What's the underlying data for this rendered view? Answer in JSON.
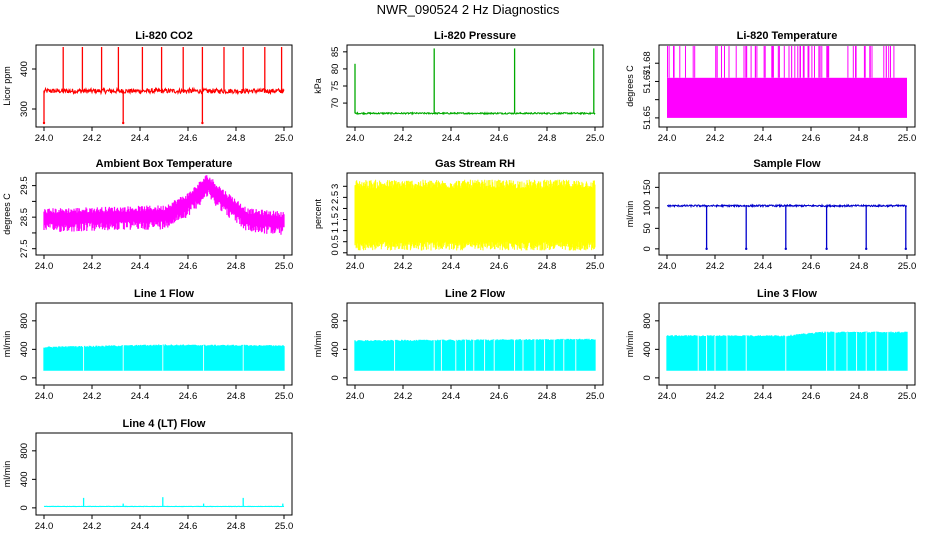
{
  "figure_title": "NWR_090524  2 Hz Diagnostics",
  "chart_data": [
    {
      "type": "line",
      "title": "Li-820 CO2",
      "ylabel": "Licor ppm",
      "color": "#ff0000",
      "xlim": [
        24.0,
        25.0
      ],
      "ylim": [
        255,
        460
      ],
      "yticks": [
        300,
        400
      ],
      "x_ticks": [
        "24.0",
        "24.2",
        "24.4",
        "24.6",
        "24.8",
        "25.0"
      ],
      "series": [
        {
          "baseline": 345,
          "noise": 6,
          "spikes": [
            [
              24.08,
              455
            ],
            [
              24.16,
              455
            ],
            [
              24.24,
              455
            ],
            [
              24.31,
              455
            ],
            [
              24.41,
              455
            ],
            [
              24.49,
              455
            ],
            [
              24.58,
              455
            ],
            [
              24.66,
              455
            ],
            [
              24.75,
              455
            ],
            [
              24.83,
              455
            ],
            [
              24.92,
              455
            ],
            [
              24.99,
              455
            ]
          ],
          "dips": [
            [
              24.0,
              265
            ],
            [
              24.33,
              265
            ],
            [
              24.66,
              265
            ]
          ]
        }
      ]
    },
    {
      "type": "line",
      "title": "Li-820 Pressure",
      "ylabel": "kPa",
      "color": "#00aa00",
      "xlim": [
        24.0,
        25.0
      ],
      "ylim": [
        63,
        87
      ],
      "yticks": [
        70,
        75,
        80,
        85
      ],
      "x_ticks": [
        "24.0",
        "24.2",
        "24.4",
        "24.6",
        "24.8",
        "25.0"
      ],
      "series": [
        {
          "baseline": 67,
          "noise": 0.2,
          "spikes": [
            [
              24.0,
              81.5
            ],
            [
              24.33,
              86
            ],
            [
              24.665,
              86
            ],
            [
              24.995,
              86
            ]
          ],
          "dips": []
        }
      ]
    },
    {
      "type": "area",
      "title": "Li-820 Temperature",
      "ylabel": "degrees C",
      "color": "#ff00ff",
      "xlim": [
        24.0,
        25.0
      ],
      "ylim": [
        51.645,
        51.69
      ],
      "yticks": [
        51.65,
        51.66,
        51.67,
        51.68
      ],
      "ytick_labels": [
        "51.65",
        "",
        "51.67",
        "51.68"
      ],
      "x_ticks": [
        "24.0",
        "24.2",
        "24.4",
        "24.6",
        "24.8",
        "25.0"
      ],
      "series": [
        {
          "low": 51.65,
          "high": 51.672,
          "spike_top": 51.69,
          "spike_count": 70
        }
      ]
    },
    {
      "type": "area",
      "title": "Ambient Box Temperature",
      "ylabel": "degrees C",
      "color": "#ff00ff",
      "xlim": [
        24.0,
        25.0
      ],
      "ylim": [
        27.3,
        29.9
      ],
      "yticks": [
        27.5,
        28.0,
        28.5,
        29.0,
        29.5
      ],
      "ytick_labels": [
        "27.5",
        "",
        "28.5",
        "",
        "29.5"
      ],
      "x_ticks": [
        "24.0",
        "24.2",
        "24.4",
        "24.6",
        "24.8",
        "25.0"
      ],
      "series": [
        {
          "mean": [
            [
              24.0,
              28.5
            ],
            [
              24.5,
              28.6
            ],
            [
              24.6,
              29.0
            ],
            [
              24.68,
              29.6
            ],
            [
              24.75,
              29.1
            ],
            [
              24.85,
              28.5
            ],
            [
              25.0,
              28.4
            ]
          ],
          "band": 0.35
        }
      ]
    },
    {
      "type": "area",
      "title": "Gas Stream RH",
      "ylabel": "percent",
      "color": "#ffff00",
      "xlim": [
        24.0,
        25.0
      ],
      "ylim": [
        -0.1,
        3.6
      ],
      "yticks": [
        0.0,
        0.5,
        1.0,
        1.5,
        2.0,
        2.5,
        3.0
      ],
      "x_ticks": [
        "24.0",
        "24.2",
        "24.4",
        "24.6",
        "24.8",
        "25.0"
      ],
      "series": [
        {
          "low": 0.1,
          "high": 3.3,
          "core_low": 0.5,
          "core_high": 2.9
        }
      ]
    },
    {
      "type": "line",
      "title": "Sample Flow",
      "ylabel": "ml/min",
      "color": "#0000cc",
      "xlim": [
        24.0,
        25.0
      ],
      "ylim": [
        -15,
        185
      ],
      "yticks": [
        0,
        50,
        100,
        150
      ],
      "x_ticks": [
        "24.0",
        "24.2",
        "24.4",
        "24.6",
        "24.8",
        "25.0"
      ],
      "series": [
        {
          "baseline": 105,
          "noise": 2,
          "spikes": [],
          "dips": [
            [
              24.165,
              0
            ],
            [
              24.33,
              0
            ],
            [
              24.495,
              0
            ],
            [
              24.665,
              0
            ],
            [
              24.83,
              0
            ],
            [
              24.995,
              0
            ]
          ]
        }
      ]
    },
    {
      "type": "area",
      "title": "Line 1 Flow",
      "ylabel": "ml/min",
      "color": "#00ffff",
      "xlim": [
        24.0,
        25.0
      ],
      "ylim": [
        -100,
        1050
      ],
      "yticks": [
        0,
        400,
        800
      ],
      "x_ticks": [
        "24.0",
        "24.2",
        "24.4",
        "24.6",
        "24.8",
        "25.0"
      ],
      "series": [
        {
          "low": 100,
          "high": [
            [
              24.0,
              430
            ],
            [
              24.5,
              460
            ],
            [
              25.0,
              450
            ]
          ],
          "gaps": [
            24.165,
            24.33,
            24.495,
            24.665,
            24.83
          ]
        }
      ]
    },
    {
      "type": "area",
      "title": "Line 2 Flow",
      "ylabel": "ml/min",
      "color": "#00ffff",
      "xlim": [
        24.0,
        25.0
      ],
      "ylim": [
        -100,
        1050
      ],
      "yticks": [
        0,
        400,
        800
      ],
      "x_ticks": [
        "24.0",
        "24.2",
        "24.4",
        "24.6",
        "24.8",
        "25.0"
      ],
      "series": [
        {
          "low": 100,
          "high": [
            [
              24.0,
              520
            ],
            [
              24.5,
              530
            ],
            [
              25.0,
              540
            ]
          ],
          "gaps": [
            24.165,
            24.33,
            24.36,
            24.42,
            24.46,
            24.495,
            24.54,
            24.58,
            24.665,
            24.7,
            24.75,
            24.79,
            24.83,
            24.87,
            24.92
          ]
        }
      ]
    },
    {
      "type": "area",
      "title": "Line 3 Flow",
      "ylabel": "ml/min",
      "color": "#00ffff",
      "xlim": [
        24.0,
        25.0
      ],
      "ylim": [
        -100,
        1050
      ],
      "yticks": [
        0,
        400,
        800
      ],
      "x_ticks": [
        "24.0",
        "24.2",
        "24.4",
        "24.6",
        "24.8",
        "25.0"
      ],
      "series": [
        {
          "low": 100,
          "high": [
            [
              24.0,
              590
            ],
            [
              24.5,
              590
            ],
            [
              24.65,
              640
            ],
            [
              25.0,
              640
            ]
          ],
          "gaps": [
            24.13,
            24.165,
            24.2,
            24.25,
            24.33,
            24.495,
            24.665,
            24.7,
            24.75,
            24.79,
            24.83,
            24.87,
            24.92
          ]
        }
      ]
    },
    {
      "type": "line",
      "title": "Line 4 (LT) Flow",
      "ylabel": "ml/min",
      "color": "#00ffff",
      "xlim": [
        24.0,
        25.0
      ],
      "ylim": [
        -100,
        1050
      ],
      "yticks": [
        0,
        400,
        800
      ],
      "x_ticks": [
        "24.0",
        "24.2",
        "24.4",
        "24.6",
        "24.8",
        "25.0"
      ],
      "series": [
        {
          "baseline": 20,
          "noise": 2,
          "spikes": [
            [
              24.165,
              140
            ],
            [
              24.33,
              60
            ],
            [
              24.495,
              150
            ],
            [
              24.665,
              60
            ],
            [
              24.83,
              140
            ],
            [
              24.995,
              60
            ]
          ],
          "dips": []
        }
      ]
    }
  ]
}
